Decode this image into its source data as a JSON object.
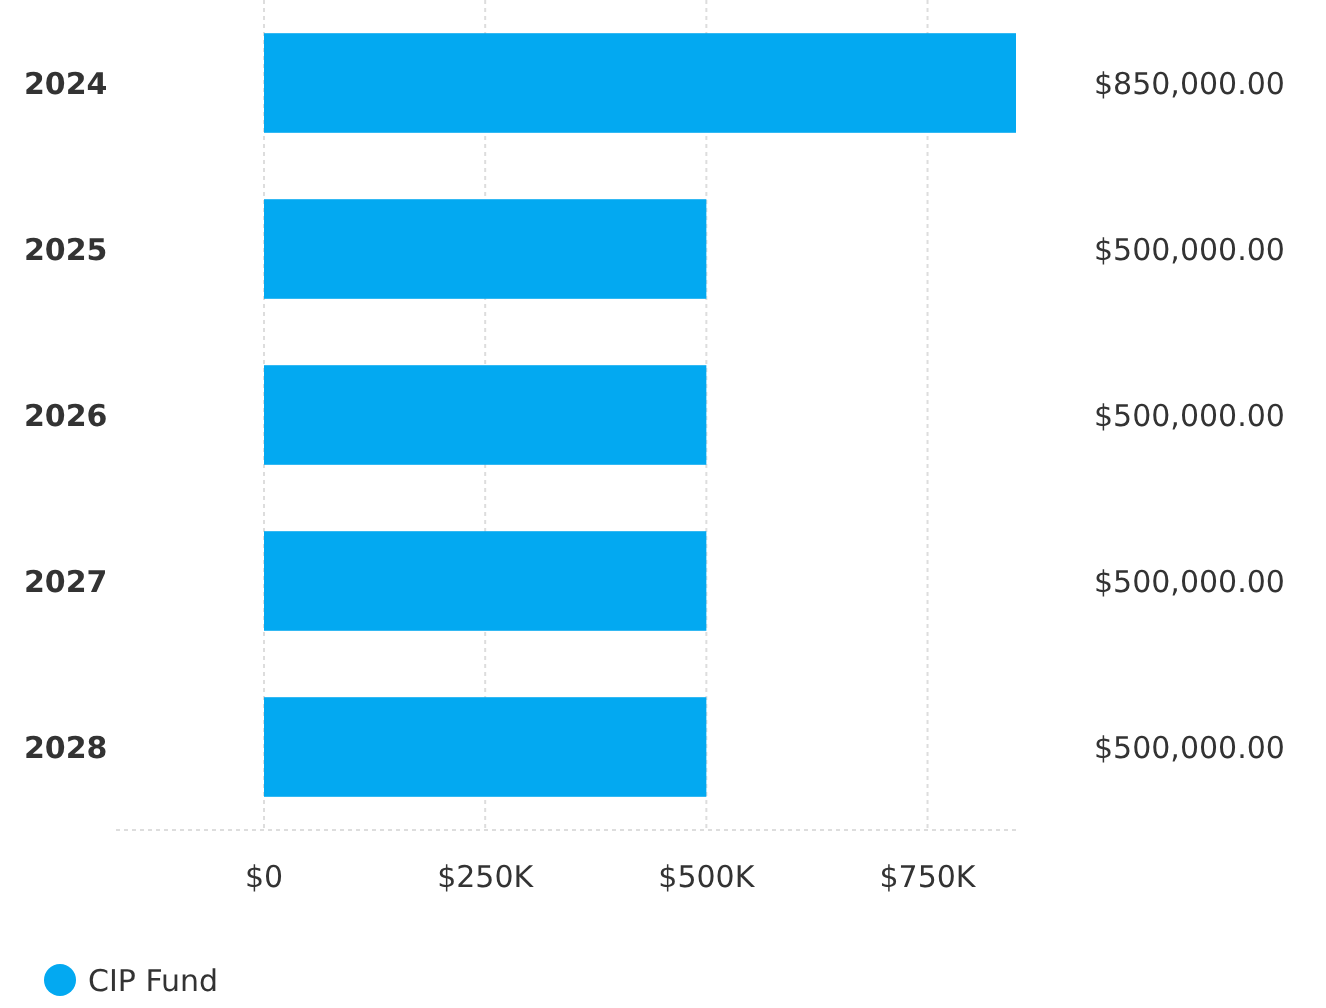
{
  "chart_data": {
    "type": "bar",
    "orientation": "horizontal",
    "categories": [
      "2024",
      "2025",
      "2026",
      "2027",
      "2028"
    ],
    "series": [
      {
        "name": "CIP Fund",
        "color": "#03a9f1",
        "values": [
          850000,
          500000,
          500000,
          500000,
          500000
        ],
        "value_labels": [
          "$850,000.00",
          "$500,000.00",
          "$500,000.00",
          "$500,000.00",
          "$500,000.00"
        ]
      }
    ],
    "xlim": [
      0,
      850000
    ],
    "xticks": [
      {
        "value": 0,
        "label": "$0"
      },
      {
        "value": 250000,
        "label": "$250K"
      },
      {
        "value": 500000,
        "label": "$500K"
      },
      {
        "value": 750000,
        "label": "$750K"
      }
    ],
    "grid": "x",
    "legend": "bottom left"
  }
}
